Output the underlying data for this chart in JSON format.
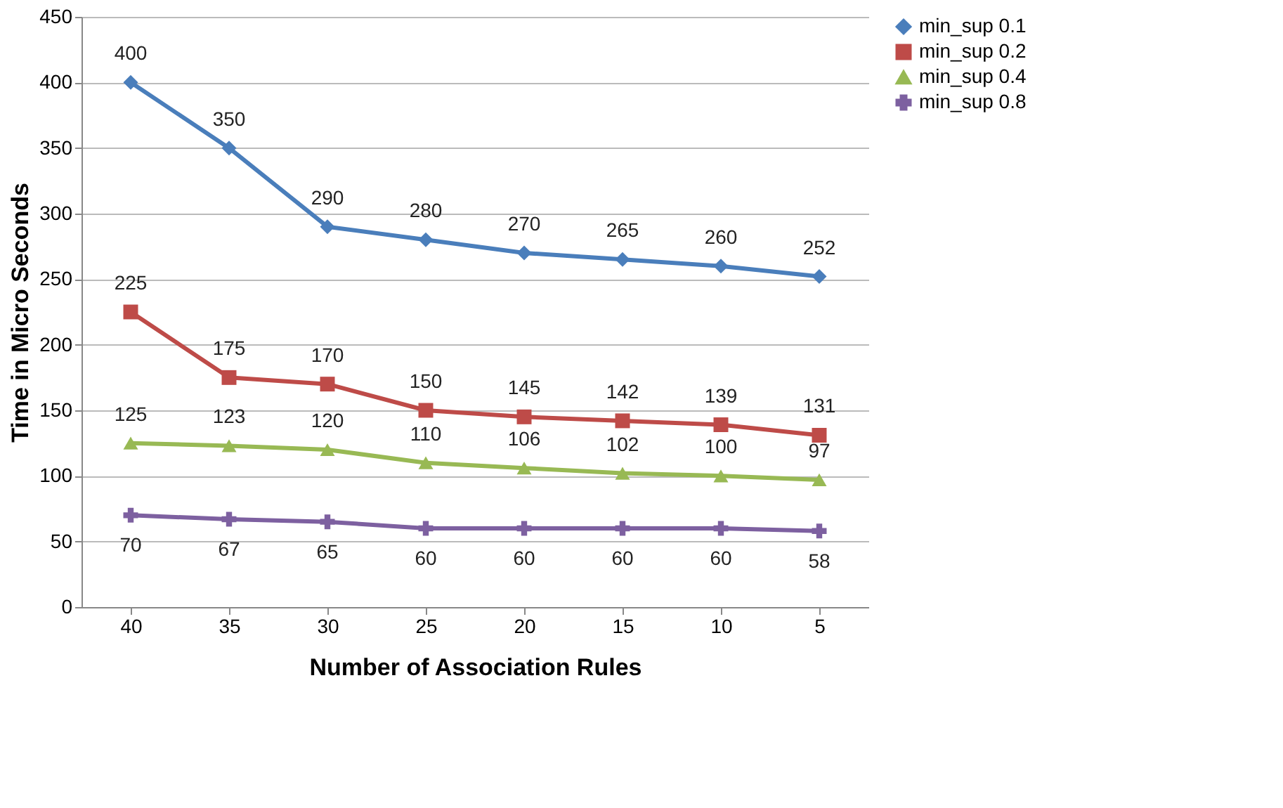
{
  "chart_data": {
    "type": "line",
    "xlabel": "Number of Association Rules",
    "ylabel": "Time in Micro Seconds",
    "categories": [
      "40",
      "35",
      "30",
      "25",
      "20",
      "15",
      "10",
      "5"
    ],
    "series": [
      {
        "name": "min_sup 0.1",
        "color": "#4a7ebb",
        "marker": "diamond",
        "values": [
          400,
          350,
          290,
          280,
          270,
          265,
          260,
          252
        ]
      },
      {
        "name": "min_sup 0.2",
        "color": "#be4b48",
        "marker": "square",
        "values": [
          225,
          175,
          170,
          150,
          145,
          142,
          139,
          131
        ]
      },
      {
        "name": "min_sup 0.4",
        "color": "#98b954",
        "marker": "triangle",
        "values": [
          125,
          123,
          120,
          110,
          106,
          102,
          100,
          97
        ]
      },
      {
        "name": "min_sup 0.8",
        "color": "#7d60a0",
        "marker": "cross",
        "values": [
          70,
          67,
          65,
          60,
          60,
          60,
          60,
          58
        ]
      }
    ],
    "ylim": [
      0,
      450
    ],
    "yticks": [
      0,
      50,
      100,
      150,
      200,
      250,
      300,
      350,
      400,
      450
    ],
    "grid": "y",
    "legend": "right",
    "data_labels": true,
    "line_style": "solid"
  }
}
